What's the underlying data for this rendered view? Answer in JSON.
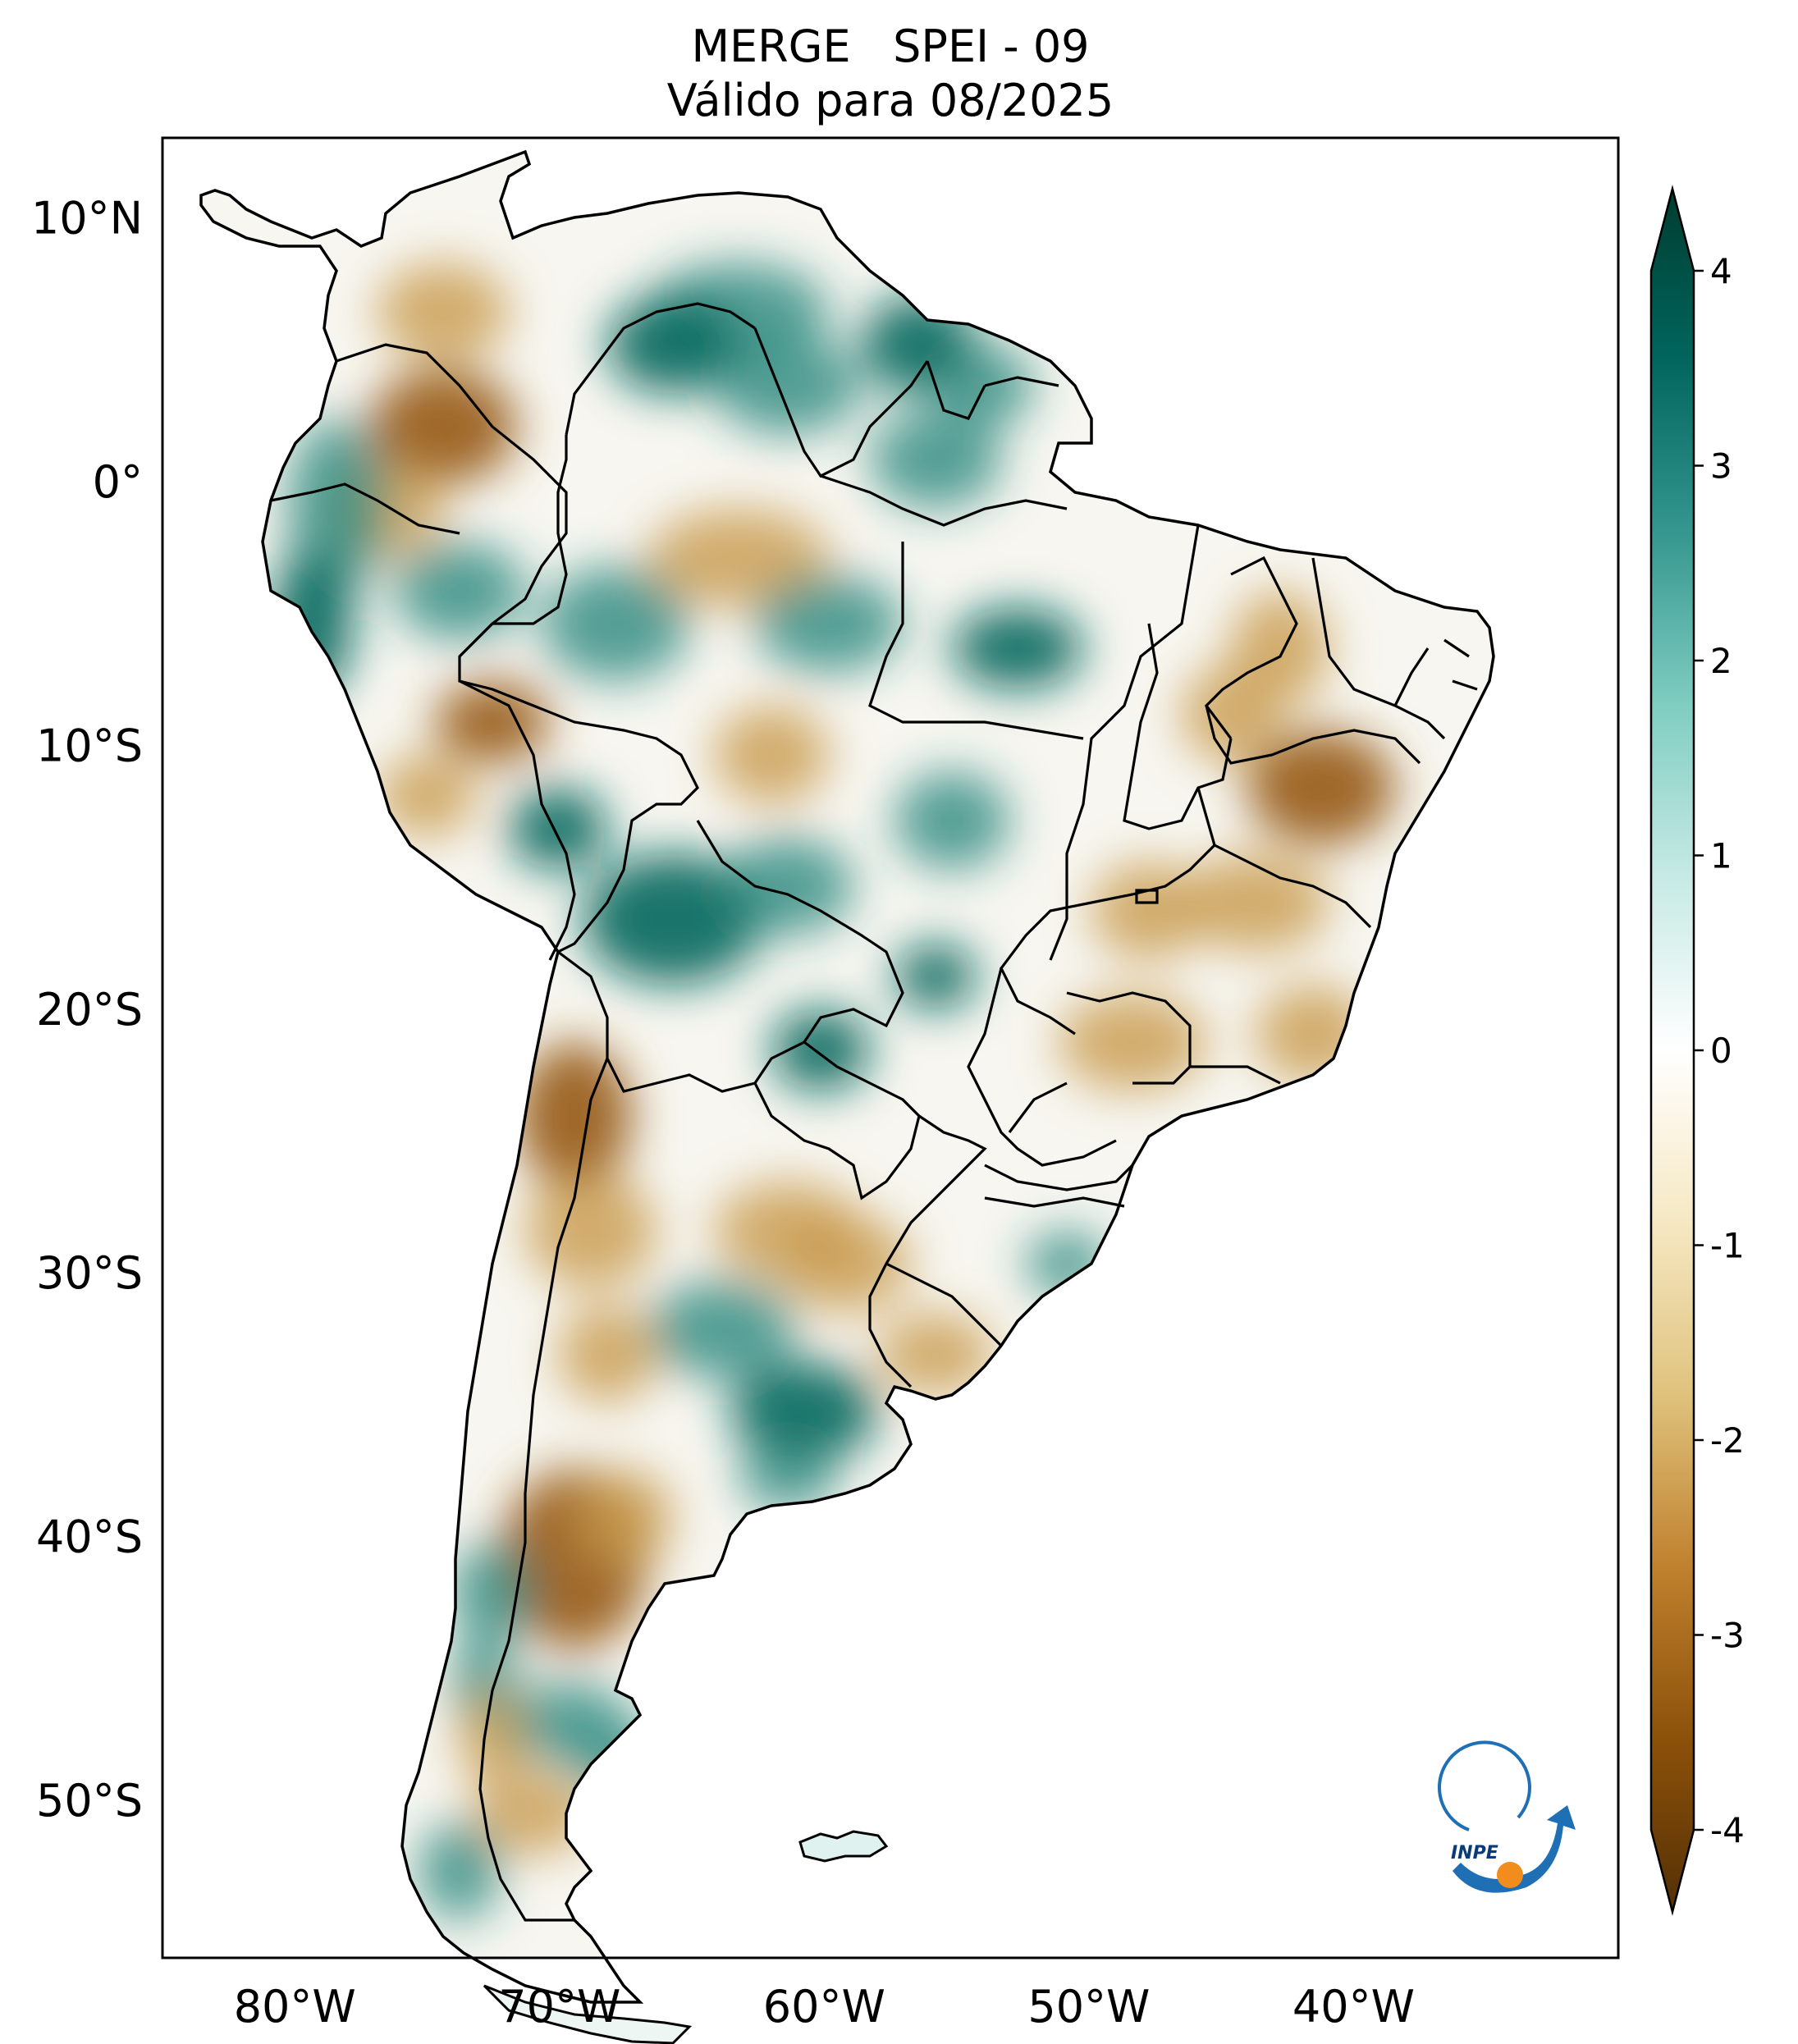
{
  "title": {
    "line1": "MERGE   SPEI - 09",
    "line2": "Válido para 08/2025"
  },
  "map": {
    "region": "South America",
    "extent": {
      "lon": [
        -85,
        -30
      ],
      "lat": [
        -56,
        13
      ]
    },
    "lat_ticks": [
      {
        "value": 10,
        "label": "10°N"
      },
      {
        "value": 0,
        "label": "0°"
      },
      {
        "value": -10,
        "label": "10°S"
      },
      {
        "value": -20,
        "label": "20°S"
      },
      {
        "value": -30,
        "label": "30°S"
      },
      {
        "value": -40,
        "label": "40°S"
      },
      {
        "value": -50,
        "label": "50°S"
      }
    ],
    "lon_ticks": [
      {
        "value": -80,
        "label": "80°W"
      },
      {
        "value": -70,
        "label": "70°W"
      },
      {
        "value": -60,
        "label": "60°W"
      },
      {
        "value": -50,
        "label": "50°W"
      },
      {
        "value": -40,
        "label": "40°W"
      }
    ],
    "colors": {
      "wet": "#2a8a7e",
      "wet_strong": "#0d6d62",
      "dry": "#c89a4e",
      "dry_strong": "#9a5f1c",
      "neutral": "#f7f6f0"
    }
  },
  "colorbar": {
    "min": -4,
    "max": 4,
    "extend": "both",
    "ticks": [
      {
        "value": 4,
        "label": "4"
      },
      {
        "value": 3,
        "label": "3"
      },
      {
        "value": 2,
        "label": "2"
      },
      {
        "value": 1,
        "label": "1"
      },
      {
        "value": 0,
        "label": "0"
      },
      {
        "value": -1,
        "label": "-1"
      },
      {
        "value": -2,
        "label": "-2"
      },
      {
        "value": -3,
        "label": "-3"
      },
      {
        "value": -4,
        "label": "-4"
      }
    ],
    "stops": [
      "#543005",
      "#8c510a",
      "#bf812d",
      "#dfc27d",
      "#f6e8c3",
      "#ffffff",
      "#c7eae5",
      "#80cdc1",
      "#35978f",
      "#01665e",
      "#003c30"
    ]
  },
  "logo": {
    "text": "INPE",
    "colors": {
      "arc": "#1f6fb5",
      "dot": "#f28c1c"
    }
  }
}
